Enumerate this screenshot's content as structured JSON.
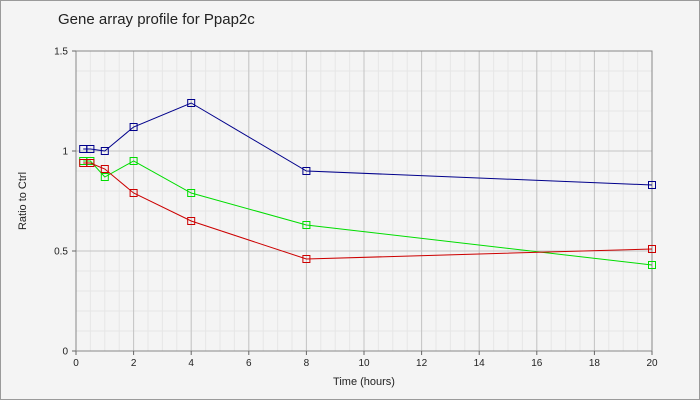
{
  "chart_data": {
    "type": "line",
    "title": "Gene array profile for Ppap2c",
    "xlabel": "Time (hours)",
    "ylabel": "Ratio to Ctrl",
    "xlim": [
      0,
      20
    ],
    "ylim": [
      0,
      1.5
    ],
    "x_ticks": [
      "0",
      "2",
      "4",
      "6",
      "8",
      "10",
      "12",
      "14",
      "16",
      "18",
      "20"
    ],
    "y_ticks": [
      "0",
      "0.5",
      "1",
      "1.5"
    ],
    "grid": true,
    "series": [
      {
        "color": "#00008b",
        "marker": "square",
        "points": [
          [
            0.25,
            1.01
          ],
          [
            0.5,
            1.01
          ],
          [
            1,
            1.0
          ],
          [
            2,
            1.12
          ],
          [
            4,
            1.24
          ],
          [
            8,
            0.9
          ],
          [
            20,
            0.83
          ]
        ]
      },
      {
        "color": "#00dd00",
        "marker": "square",
        "points": [
          [
            0.25,
            0.95
          ],
          [
            0.5,
            0.95
          ],
          [
            1,
            0.87
          ],
          [
            2,
            0.95
          ],
          [
            4,
            0.79
          ],
          [
            8,
            0.63
          ],
          [
            20,
            0.43
          ]
        ]
      },
      {
        "color": "#cc0000",
        "marker": "square",
        "points": [
          [
            0.25,
            0.94
          ],
          [
            0.5,
            0.94
          ],
          [
            1,
            0.91
          ],
          [
            2,
            0.79
          ],
          [
            4,
            0.65
          ],
          [
            8,
            0.46
          ],
          [
            20,
            0.51
          ]
        ]
      }
    ]
  }
}
